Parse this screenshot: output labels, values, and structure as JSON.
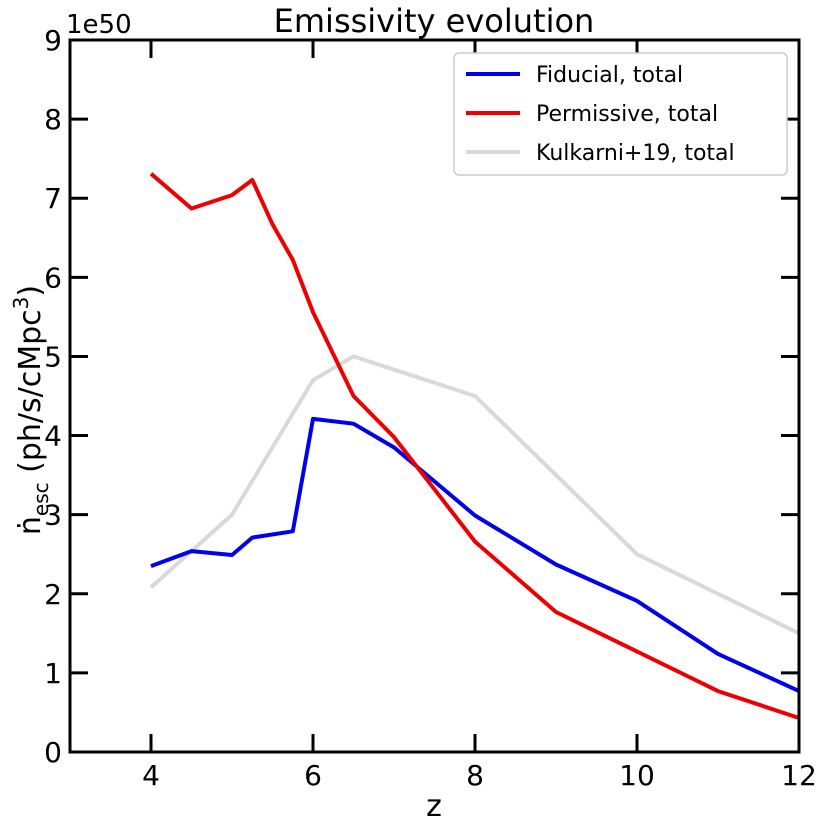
{
  "chart_data": {
    "type": "line",
    "title": "Emissivity evolution",
    "xlabel": "z",
    "ylabel_main": "ṅ",
    "ylabel_sub": "esc",
    "ylabel_units": " (ph/s/cMpc",
    "ylabel_sup": "3",
    "ylabel_close": ")",
    "y_scale_label": "1e50",
    "xlim": [
      3,
      12
    ],
    "ylim": [
      0,
      9
    ],
    "xticks": [
      4,
      6,
      8,
      10,
      12
    ],
    "yticks": [
      0,
      1,
      2,
      3,
      4,
      5,
      6,
      7,
      8,
      9
    ],
    "legend_position": "top-right",
    "series": [
      {
        "name": "Fiducial, total",
        "color": "#0000ee",
        "x": [
          4,
          4.5,
          5,
          5.25,
          5.75,
          6,
          6.5,
          7,
          8,
          9,
          10,
          11,
          12
        ],
        "y": [
          2.35,
          2.54,
          2.49,
          2.71,
          2.79,
          4.21,
          4.15,
          3.85,
          2.99,
          2.37,
          1.91,
          1.24,
          0.77
        ]
      },
      {
        "name": "Permissive, total",
        "color": "#ee0000",
        "x": [
          4,
          4.5,
          5,
          5.25,
          5.5,
          5.75,
          6,
          6.5,
          7,
          8,
          9,
          10,
          11,
          12
        ],
        "y": [
          7.31,
          6.87,
          7.04,
          7.23,
          6.67,
          6.22,
          5.56,
          4.5,
          3.98,
          2.66,
          1.77,
          1.27,
          0.77,
          0.43
        ]
      },
      {
        "name": "Kulkarni+19, total",
        "color": "#d9d9d9",
        "x": [
          4,
          5,
          5.5,
          6,
          6.5,
          8,
          9,
          10,
          11,
          12
        ],
        "y": [
          2.08,
          3.0,
          3.85,
          4.7,
          5.0,
          4.5,
          3.5,
          2.5,
          2.0,
          1.5
        ]
      }
    ]
  }
}
